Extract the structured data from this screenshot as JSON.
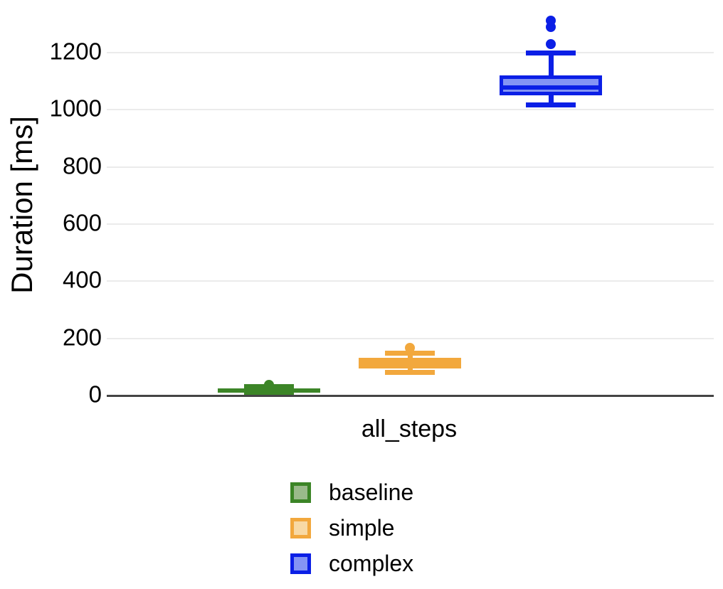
{
  "chart_data": {
    "type": "boxplot",
    "title": "",
    "xlabel": "",
    "ylabel": "Duration [ms]",
    "categories": [
      "all_steps"
    ],
    "ylim": [
      0,
      1300
    ],
    "yticks": [
      0,
      200,
      400,
      600,
      800,
      1000,
      1200
    ],
    "grid": "horizontal-only",
    "legend_position": "bottom-center",
    "background_color": "#ffffff",
    "grid_color": "#ebebeb",
    "axis_color": "#444444",
    "text_color": "#000000",
    "series": [
      {
        "name": "baseline",
        "border_color": "#3C8527",
        "fill_color": "#7DAB69",
        "legend_fill": "#9ABA8B",
        "boxes": [
          {
            "category": "all_steps",
            "whisker_low": 4,
            "q1": 10,
            "median": 16,
            "q3": 24,
            "whisker_high": 30,
            "outliers": [
              38
            ]
          }
        ]
      },
      {
        "name": "simple",
        "border_color": "#F2A83D",
        "fill_color": "#F5B95C",
        "legend_fill": "#F8D9A4",
        "boxes": [
          {
            "category": "all_steps",
            "whisker_low": 80,
            "q1": 95,
            "median": 112,
            "q3": 131,
            "whisker_high": 148,
            "outliers": [
              166
            ]
          }
        ]
      },
      {
        "name": "complex",
        "border_color": "#0B1FE6",
        "fill_color": "#8494F4",
        "legend_fill": "#8494F4",
        "boxes": [
          {
            "category": "all_steps",
            "whisker_low": 1018,
            "q1": 1050,
            "median": 1078,
            "q3": 1120,
            "whisker_high": 1200,
            "outliers": [
              1230,
              1290,
              1312
            ]
          }
        ]
      }
    ]
  }
}
